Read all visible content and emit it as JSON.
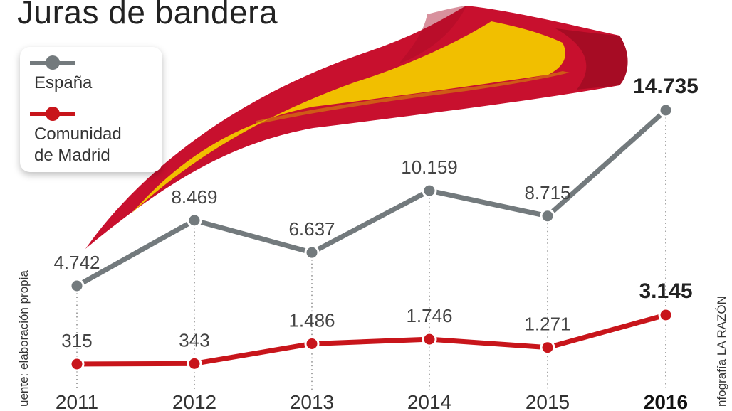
{
  "title": "Juras de bandera",
  "legend": {
    "spain": "España",
    "madrid_line1": "Comunidad",
    "madrid_line2": "de Madrid"
  },
  "source_left": "uente: elaboración propia",
  "source_right": "nfografía LA RAZÓN",
  "colors": {
    "spain": "#737a7d",
    "madrid": "#c8151b",
    "flag_red": "#c8102e",
    "flag_yellow": "#f1bf00"
  },
  "chart_data": {
    "type": "line",
    "x": [
      "2011",
      "2012",
      "2013",
      "2014",
      "2015",
      "2016"
    ],
    "series": [
      {
        "name": "España",
        "values": [
          4742,
          8469,
          6637,
          10159,
          8715,
          14735
        ],
        "labels": [
          "4.742",
          "8.469",
          "6.637",
          "10.159",
          "8.715",
          "14.735"
        ]
      },
      {
        "name": "Comunidad de Madrid",
        "values": [
          315,
          343,
          1486,
          1746,
          1271,
          3145
        ],
        "labels": [
          "315",
          "343",
          "1.486",
          "1.746",
          "1.271",
          "3.145"
        ]
      }
    ],
    "grid": false,
    "legend_position": "top-left"
  }
}
